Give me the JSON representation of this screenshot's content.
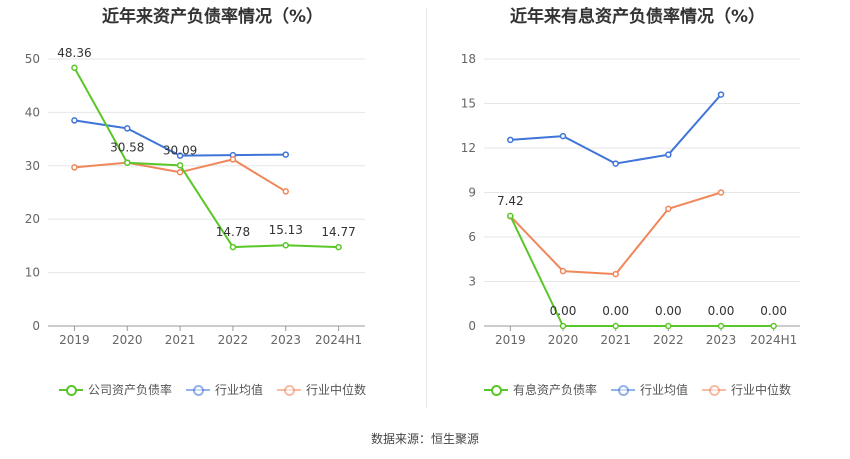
{
  "colors": {
    "company": "#5ac729",
    "avg": "#3f74d9",
    "median": "#f0875a",
    "grid": "#e6e6e6",
    "axis": "#999999"
  },
  "source": "数据来源：恒生聚源",
  "chart_data": [
    {
      "type": "line",
      "title": "近年来资产负债率情况（%）",
      "categories": [
        "2019",
        "2020",
        "2021",
        "2022",
        "2023",
        "2024H1"
      ],
      "yticks": [
        "0",
        "10",
        "20",
        "30",
        "40",
        "50"
      ],
      "ylim": [
        0,
        50
      ],
      "grid": true,
      "legend_position": "bottom",
      "series": [
        {
          "name": "公司资产负债率",
          "key": "company",
          "values": [
            48.36,
            30.58,
            30.09,
            14.78,
            15.13,
            14.77
          ],
          "labels": [
            "48.36",
            "30.58",
            "30.09",
            "14.78",
            "15.13",
            "14.77"
          ]
        },
        {
          "name": "行业均值",
          "key": "avg",
          "values": [
            38.5,
            37.0,
            31.9,
            32.0,
            32.1,
            null
          ]
        },
        {
          "name": "行业中位数",
          "key": "median",
          "values": [
            29.7,
            30.6,
            28.8,
            31.2,
            25.2,
            null
          ]
        }
      ]
    },
    {
      "type": "line",
      "title": "近年来有息资产负债率情况（%）",
      "categories": [
        "2019",
        "2020",
        "2021",
        "2022",
        "2023",
        "2024H1"
      ],
      "yticks": [
        "0",
        "3",
        "6",
        "9",
        "12",
        "15",
        "18"
      ],
      "ylim": [
        0,
        18
      ],
      "grid": true,
      "legend_position": "bottom",
      "series": [
        {
          "name": "有息资产负债率",
          "key": "company",
          "values": [
            7.42,
            0.0,
            0.0,
            0.0,
            0.0,
            0.0
          ],
          "labels": [
            "7.42",
            "0.00",
            "0.00",
            "0.00",
            "0.00",
            "0.00"
          ]
        },
        {
          "name": "行业均值",
          "key": "avg",
          "values": [
            12.55,
            12.8,
            10.95,
            11.55,
            15.6,
            null
          ]
        },
        {
          "name": "行业中位数",
          "key": "median",
          "values": [
            7.4,
            3.7,
            3.5,
            7.9,
            9.0,
            null
          ]
        }
      ]
    }
  ]
}
